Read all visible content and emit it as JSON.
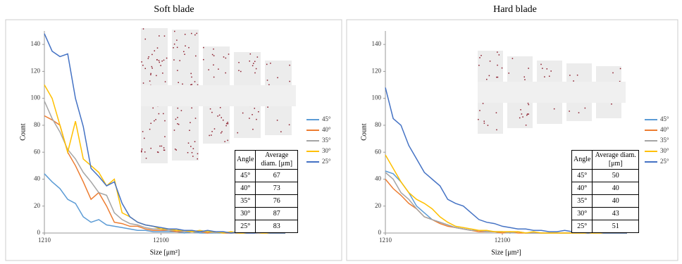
{
  "chart_data": [
    {
      "type": "line",
      "title": "Soft blade",
      "x_label": "Size [μm²]",
      "y_label": "Count",
      "x": [
        1210,
        1936,
        2662,
        3388,
        4114,
        4840,
        5566,
        6292,
        7018,
        7744,
        8470,
        9196,
        9922,
        10648,
        11374,
        12100,
        12826,
        13552,
        14278,
        15004,
        15730,
        16456,
        17182,
        17908,
        18634,
        19360,
        20086,
        20812,
        21538,
        22264,
        22990,
        23716
      ],
      "xlim": [
        1210,
        23716
      ],
      "xticks": [
        1210,
        12100
      ],
      "ylim": [
        0,
        150
      ],
      "yticks": [
        0,
        20,
        40,
        60,
        80,
        100,
        120,
        140
      ],
      "grid": false,
      "series": [
        {
          "name": "45°",
          "color": "#5b9bd5",
          "values": [
            44,
            38,
            33,
            25,
            22,
            12,
            8,
            10,
            6,
            5,
            4,
            3,
            2,
            2,
            1,
            1,
            1,
            1,
            0,
            1,
            0,
            0,
            0,
            0,
            0,
            0,
            0,
            0,
            0,
            0,
            0,
            0
          ]
        },
        {
          "name": "40°",
          "color": "#ed7d31",
          "values": [
            87,
            84,
            80,
            60,
            50,
            38,
            25,
            30,
            20,
            8,
            7,
            5,
            5,
            3,
            2,
            2,
            2,
            1,
            1,
            1,
            1,
            0,
            1,
            0,
            0,
            0,
            0,
            0,
            0,
            0,
            0,
            0
          ]
        },
        {
          "name": "35°",
          "color": "#a5a5a5",
          "values": [
            98,
            85,
            75,
            62,
            55,
            45,
            38,
            30,
            28,
            15,
            10,
            7,
            6,
            4,
            3,
            3,
            2,
            2,
            1,
            1,
            1,
            1,
            0,
            1,
            0,
            0,
            0,
            0,
            0,
            0,
            0,
            0
          ]
        },
        {
          "name": "30°",
          "color": "#ffc000",
          "values": [
            110,
            100,
            80,
            60,
            83,
            55,
            50,
            45,
            35,
            40,
            15,
            12,
            8,
            6,
            5,
            3,
            3,
            2,
            2,
            1,
            2,
            1,
            1,
            0,
            1,
            0,
            0,
            1,
            0,
            0,
            0,
            0
          ]
        },
        {
          "name": "25°",
          "color": "#4472c4",
          "values": [
            148,
            135,
            131,
            133,
            100,
            79,
            48,
            42,
            35,
            38,
            22,
            12,
            8,
            6,
            5,
            4,
            3,
            3,
            2,
            2,
            1,
            2,
            1,
            1,
            0,
            1,
            0,
            0,
            1,
            0,
            0,
            0
          ]
        }
      ],
      "table": {
        "header": [
          "Angle",
          "Average diam. [μm]"
        ],
        "rows": [
          [
            "45°",
            67
          ],
          [
            "40°",
            73
          ],
          [
            "35°",
            76
          ],
          [
            "30°",
            87
          ],
          [
            "25°",
            83
          ]
        ]
      }
    },
    {
      "type": "line",
      "title": "Hard blade",
      "x_label": "Size [μm²]",
      "y_label": "Count",
      "x": [
        1210,
        1936,
        2662,
        3388,
        4114,
        4840,
        5566,
        6292,
        7018,
        7744,
        8470,
        9196,
        9922,
        10648,
        11374,
        12100,
        12826,
        13552,
        14278,
        15004,
        15730,
        16456,
        17182,
        17908,
        18634,
        19360,
        20086,
        20812,
        21538,
        22264,
        22990,
        23716
      ],
      "xlim": [
        1210,
        23716
      ],
      "xticks": [
        1210,
        12100
      ],
      "ylim": [
        0,
        150
      ],
      "yticks": [
        0,
        20,
        40,
        60,
        80,
        100,
        120,
        140
      ],
      "grid": false,
      "series": [
        {
          "name": "45°",
          "color": "#5b9bd5",
          "values": [
            46,
            44,
            38,
            30,
            20,
            15,
            10,
            8,
            6,
            4,
            3,
            2,
            2,
            1,
            1,
            1,
            0,
            1,
            0,
            0,
            0,
            0,
            0,
            0,
            0,
            0,
            0,
            0,
            0,
            0,
            0,
            0
          ]
        },
        {
          "name": "40°",
          "color": "#ed7d31",
          "values": [
            40,
            33,
            28,
            22,
            18,
            12,
            10,
            7,
            5,
            4,
            3,
            2,
            1,
            1,
            1,
            0,
            1,
            0,
            0,
            0,
            0,
            0,
            0,
            0,
            0,
            0,
            0,
            0,
            0,
            0,
            0,
            0
          ]
        },
        {
          "name": "35°",
          "color": "#a5a5a5",
          "values": [
            45,
            40,
            30,
            25,
            18,
            12,
            10,
            8,
            6,
            4,
            3,
            2,
            2,
            1,
            1,
            1,
            0,
            1,
            0,
            0,
            0,
            0,
            0,
            0,
            0,
            0,
            0,
            0,
            0,
            0,
            0,
            0
          ]
        },
        {
          "name": "30°",
          "color": "#ffc000",
          "values": [
            58,
            48,
            38,
            30,
            25,
            22,
            18,
            12,
            8,
            5,
            4,
            3,
            2,
            2,
            1,
            1,
            1,
            1,
            0,
            1,
            0,
            0,
            0,
            0,
            0,
            0,
            0,
            0,
            0,
            0,
            0,
            0
          ]
        },
        {
          "name": "25°",
          "color": "#4472c4",
          "values": [
            108,
            85,
            80,
            65,
            55,
            45,
            40,
            35,
            25,
            22,
            20,
            15,
            10,
            8,
            7,
            5,
            4,
            3,
            3,
            2,
            2,
            1,
            1,
            2,
            1,
            1,
            0,
            1,
            0,
            0,
            0,
            0
          ]
        }
      ],
      "table": {
        "header": [
          "Angle",
          "Average diam. [μm]"
        ],
        "rows": [
          [
            "45°",
            50
          ],
          [
            "40°",
            40
          ],
          [
            "35°",
            40
          ],
          [
            "30°",
            43
          ],
          [
            "25°",
            51
          ]
        ]
      }
    }
  ]
}
